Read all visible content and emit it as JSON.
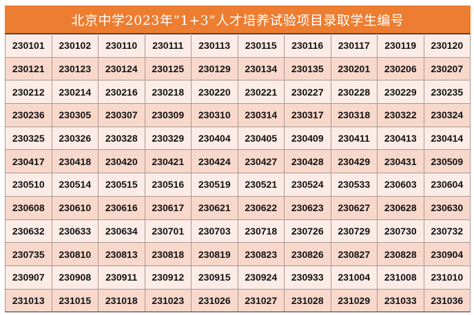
{
  "title": "北京中学2023年”1+3”人才培养试验项目录取学生编号",
  "colors": {
    "header": "#ED7D31",
    "row_light": "#FCECE7",
    "row_dark": "#F8D8CB"
  },
  "rows": [
    [
      "230101",
      "230102",
      "230110",
      "230111",
      "230113",
      "230115",
      "230116",
      "230117",
      "230119",
      "230120"
    ],
    [
      "230121",
      "230123",
      "230124",
      "230125",
      "230129",
      "230134",
      "230135",
      "230201",
      "230206",
      "230207"
    ],
    [
      "230212",
      "230214",
      "230216",
      "230218",
      "230220",
      "230221",
      "230227",
      "230228",
      "230229",
      "230235"
    ],
    [
      "230236",
      "230305",
      "230307",
      "230309",
      "230310",
      "230314",
      "230317",
      "230318",
      "230322",
      "230324"
    ],
    [
      "230325",
      "230326",
      "230328",
      "230329",
      "230404",
      "230405",
      "230409",
      "230411",
      "230413",
      "230414"
    ],
    [
      "230417",
      "230418",
      "230420",
      "230421",
      "230424",
      "230427",
      "230428",
      "230429",
      "230431",
      "230509"
    ],
    [
      "230510",
      "230514",
      "230515",
      "230516",
      "230519",
      "230521",
      "230524",
      "230533",
      "230603",
      "230604"
    ],
    [
      "230608",
      "230610",
      "230616",
      "230617",
      "230621",
      "230622",
      "230623",
      "230627",
      "230628",
      "230630"
    ],
    [
      "230632",
      "230633",
      "230634",
      "230701",
      "230703",
      "230718",
      "230726",
      "230729",
      "230730",
      "230732"
    ],
    [
      "230735",
      "230810",
      "230813",
      "230818",
      "230819",
      "230823",
      "230826",
      "230827",
      "230828",
      "230904"
    ],
    [
      "230907",
      "230908",
      "230911",
      "230912",
      "230915",
      "230924",
      "230933",
      "231004",
      "231008",
      "231010"
    ],
    [
      "231013",
      "231015",
      "231018",
      "231023",
      "231026",
      "231027",
      "231028",
      "231029",
      "231033",
      "231036"
    ]
  ]
}
